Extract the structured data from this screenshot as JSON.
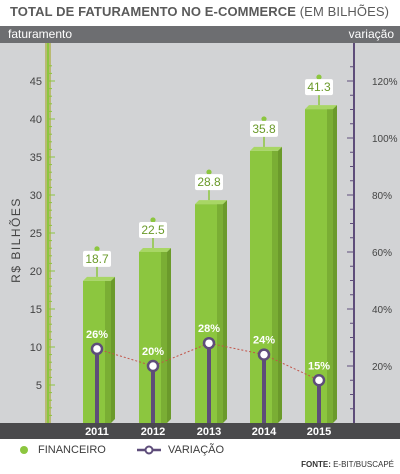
{
  "header": {
    "title_bold": "TOTAL DE FATURAMENTO NO E-COMMERCE",
    "title_light": " (EM BILHÕES)",
    "left_label": "faturamento",
    "right_label": "variação"
  },
  "legend": {
    "financeiro": "FINANCEIRO",
    "variacao": "VARIAÇÃO"
  },
  "source": {
    "label": "FONTE:",
    "text": " E-BIT/BUSCAPÉ"
  },
  "colors": {
    "bar_main": "#8cc63f",
    "bar_dark": "#6b9a2b",
    "bar_light": "#a8d665",
    "variation_line": "#5e4d7a",
    "background": "#d2d3d5",
    "band": "#6d6e71"
  },
  "chart_data": {
    "type": "bar",
    "categories": [
      "2011",
      "2012",
      "2013",
      "2014",
      "2015"
    ],
    "series": [
      {
        "name": "FINANCEIRO",
        "axis": "left",
        "values": [
          18.7,
          22.5,
          28.8,
          35.8,
          41.3
        ],
        "labels": [
          "18.7",
          "22.5",
          "28.8",
          "35.8",
          "41.3"
        ]
      },
      {
        "name": "VARIAÇÃO",
        "axis": "right",
        "type": "line",
        "values": [
          26,
          20,
          28,
          24,
          15
        ],
        "labels": [
          "26%",
          "20%",
          "28%",
          "24%",
          "15%"
        ]
      }
    ],
    "ylabel": "R$ BILHÕES",
    "ylim": [
      0,
      48
    ],
    "yticks": [
      5,
      10,
      15,
      20,
      25,
      30,
      35,
      40,
      45
    ],
    "y2lim": [
      0,
      128
    ],
    "y2ticks": [
      20,
      40,
      60,
      80,
      100,
      120
    ],
    "y2ticklabels": [
      "20%",
      "40%",
      "60%",
      "80%",
      "100%",
      "120%"
    ],
    "legend_position": "bottom"
  }
}
